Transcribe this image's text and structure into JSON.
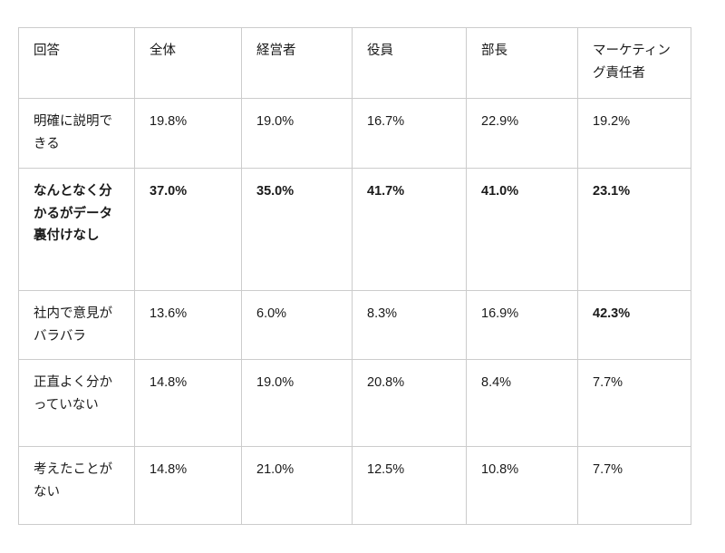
{
  "colors": {
    "background": "#ffffff",
    "border": "#cccccc",
    "text": "#1a1a1a"
  },
  "table": {
    "columns": [
      "回答",
      "全体",
      "経営者",
      "役員",
      "部長",
      "マーケティング責任者"
    ],
    "rows": [
      {
        "label": "明確に説明できる",
        "bold_label": false,
        "values": [
          "19.8%",
          "19.0%",
          "16.7%",
          "22.9%",
          "19.2%"
        ],
        "bold_values": [
          false,
          false,
          false,
          false,
          false
        ]
      },
      {
        "label": "なんとなく分かるがデータ裏付けなし",
        "bold_label": true,
        "values": [
          "37.0%",
          "35.0%",
          "41.7%",
          "41.0%",
          "23.1%"
        ],
        "bold_values": [
          true,
          true,
          true,
          true,
          true
        ]
      },
      {
        "label": "社内で意見がバラバラ",
        "bold_label": false,
        "values": [
          "13.6%",
          "6.0%",
          "8.3%",
          "16.9%",
          "42.3%"
        ],
        "bold_values": [
          false,
          false,
          false,
          false,
          true
        ]
      },
      {
        "label": "正直よく分かっていない",
        "bold_label": false,
        "values": [
          "14.8%",
          "19.0%",
          "20.8%",
          "8.4%",
          "7.7%"
        ],
        "bold_values": [
          false,
          false,
          false,
          false,
          false
        ]
      },
      {
        "label": "考えたことがない",
        "bold_label": false,
        "values": [
          "14.8%",
          "21.0%",
          "12.5%",
          "10.8%",
          "7.7%"
        ],
        "bold_values": [
          false,
          false,
          false,
          false,
          false
        ]
      }
    ]
  },
  "chart_data": {
    "type": "table",
    "title": "",
    "unit": "%",
    "categories": [
      "明確に説明できる",
      "なんとなく分かるがデータ裏付けなし",
      "社内で意見がバラバラ",
      "正直よく分かっていない",
      "考えたことがない"
    ],
    "series": [
      {
        "name": "全体",
        "values": [
          19.8,
          37.0,
          13.6,
          14.8,
          14.8
        ]
      },
      {
        "name": "経営者",
        "values": [
          19.0,
          35.0,
          6.0,
          19.0,
          21.0
        ]
      },
      {
        "name": "役員",
        "values": [
          16.7,
          41.7,
          8.3,
          20.8,
          12.5
        ]
      },
      {
        "name": "部長",
        "values": [
          22.9,
          41.0,
          16.9,
          8.4,
          10.8
        ]
      },
      {
        "name": "マーケティング責任者",
        "values": [
          19.2,
          23.1,
          42.3,
          7.7,
          7.7
        ]
      }
    ],
    "emphasized_cells_note": "Row 'なんとなく分かるがデータ裏付けなし' fully bold; cell 42.3% (社内で意見がバラバラ × マーケティング責任者) bold"
  }
}
